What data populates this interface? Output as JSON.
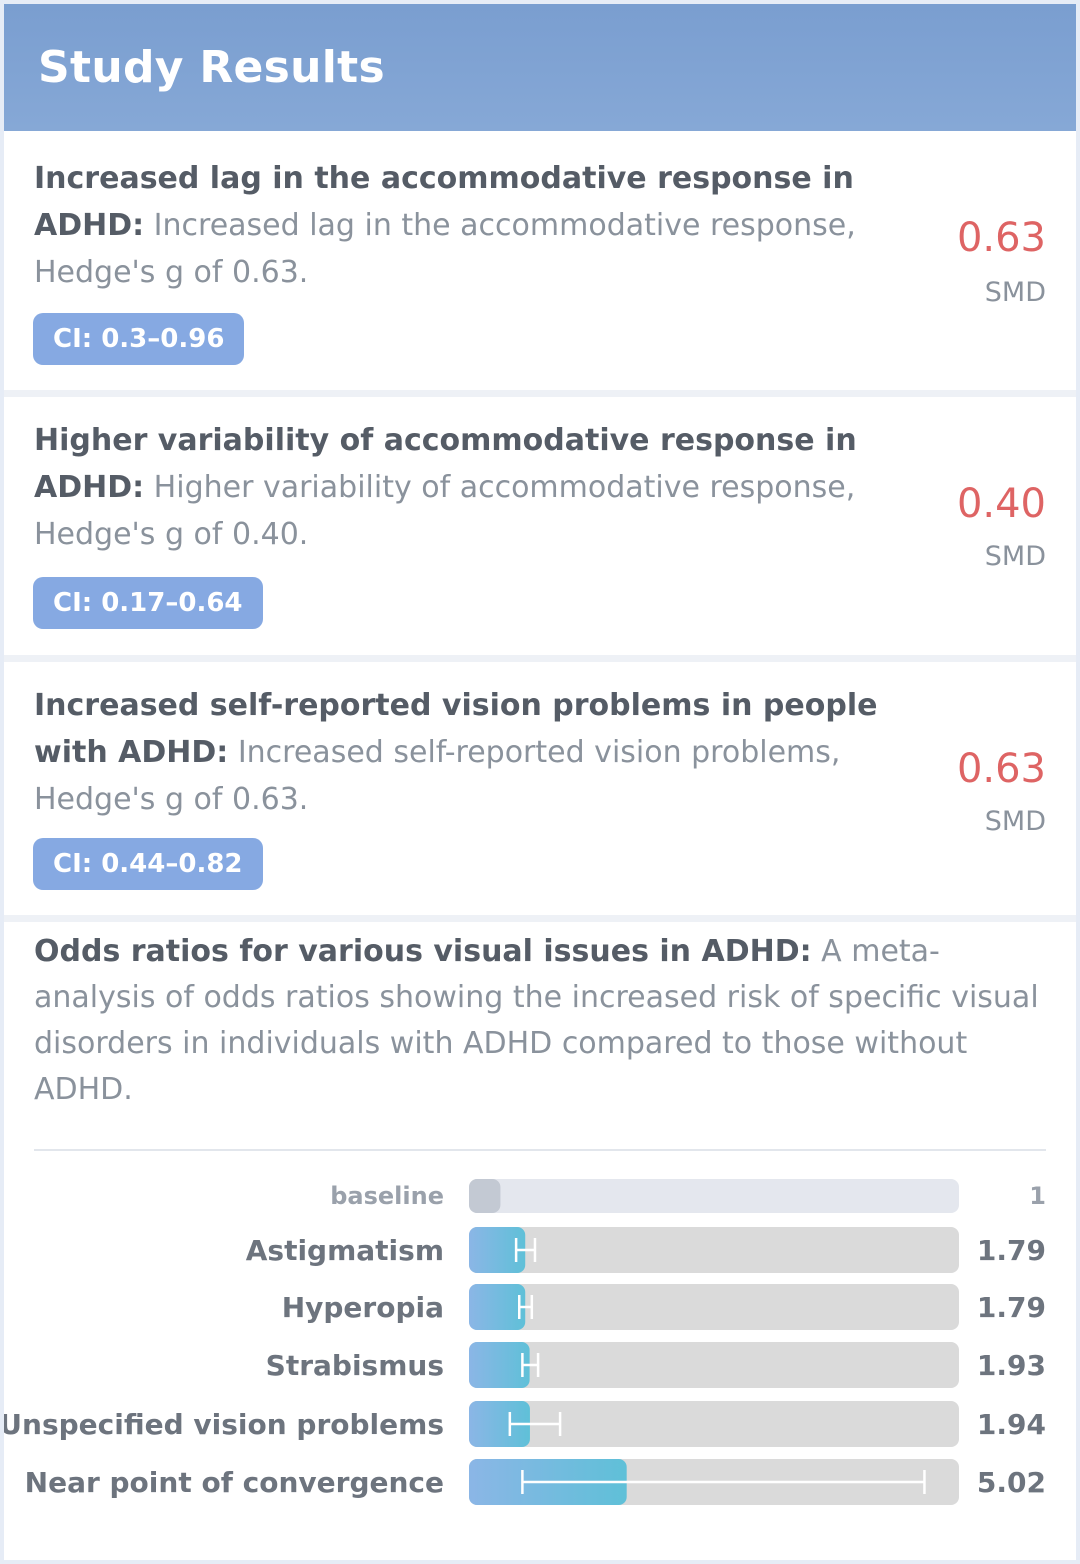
{
  "header": {
    "title": "Study Results"
  },
  "results": [
    {
      "lead": "Increased lag in the accommodative response in ADHD:",
      "description": " Increased lag in the accommodative response, Hedge's g of 0.63.",
      "ci": "CI: 0.3–0.96",
      "value": "0.63",
      "unit": "SMD"
    },
    {
      "lead": "Higher variability of accommodative response in ADHD:",
      "description": " Higher variability of accommodative response, Hedge's g of 0.40.",
      "ci": "CI: 0.17–0.64",
      "value": "0.40",
      "unit": "SMD"
    },
    {
      "lead": "Increased self-reported vision problems in people with ADHD:",
      "description": " Increased self-reported vision problems, Hedge's g of 0.63.",
      "ci": "CI: 0.44–0.82",
      "value": "0.63",
      "unit": "SMD"
    }
  ],
  "odds": {
    "lead": "Odds ratios for various visual issues in ADHD:",
    "description": " A meta-analysis of odds ratios showing the increased risk of specific visual disorders in individuals with ADHD compared to those without ADHD."
  },
  "chart_data": {
    "type": "bar",
    "orientation": "horizontal",
    "categories": [
      "baseline",
      "Astigmatism",
      "Hyperopia",
      "Strabismus",
      "Unspecified vision problems",
      "Near point of convergence"
    ],
    "values": [
      1,
      1.79,
      1.79,
      1.93,
      1.94,
      5.02
    ],
    "value_labels": [
      "1",
      "1.79",
      "1.79",
      "1.93",
      "1.94",
      "5.02"
    ],
    "error_low": [
      null,
      1.5,
      1.6,
      1.7,
      1.3,
      1.7
    ],
    "error_high": [
      null,
      2.1,
      2.0,
      2.2,
      2.9,
      14.5
    ],
    "xlim": [
      0,
      15.6
    ],
    "colors": {
      "baseline": "#c3c9d3",
      "bar": "#6cb4dc",
      "track": "#dadada",
      "baseline_track": "#e4e7ee"
    }
  }
}
